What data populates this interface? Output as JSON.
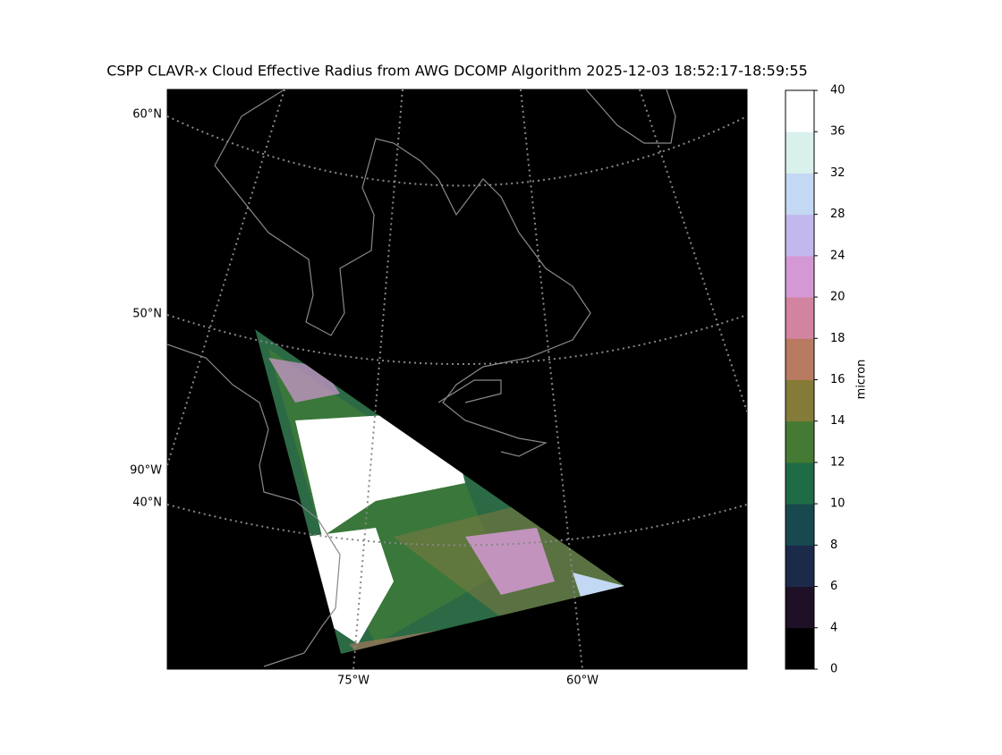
{
  "title": "CSPP CLAVR-x Cloud Effective Radius from AWG DCOMP Algorithm 2025-12-03 18:52:17-18:59:55",
  "map": {
    "lat_labels": [
      "60°N",
      "50°N",
      "40°N"
    ],
    "lon_labels_left": [
      "90°W"
    ],
    "lon_labels_bottom": [
      "75°W",
      "60°W"
    ]
  },
  "colorbar": {
    "label": "micron",
    "ticks": [
      0,
      4,
      6,
      8,
      10,
      12,
      14,
      16,
      18,
      20,
      24,
      28,
      32,
      36,
      40
    ],
    "colors": [
      "#000000",
      "#1e1026",
      "#1c2a4a",
      "#17494f",
      "#1f6b45",
      "#457a34",
      "#857b38",
      "#b87a60",
      "#d183a0",
      "#d499d4",
      "#c3b8ee",
      "#c3d8f2",
      "#d9f0ec",
      "#ffffff"
    ]
  }
}
